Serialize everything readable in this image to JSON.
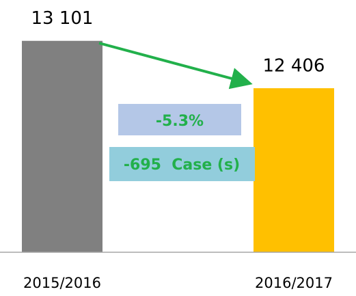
{
  "chart_data": {
    "type": "bar",
    "categories": [
      "2015/2016",
      "2016/2017"
    ],
    "values": [
      13101,
      12406
    ],
    "value_labels": [
      "13 101",
      "12 406"
    ],
    "colors": [
      "#808080",
      "#ffc000"
    ],
    "ylim": [
      10000,
      13700
    ],
    "annotations": [
      "-5.3%",
      "-695  Case (s)"
    ]
  }
}
